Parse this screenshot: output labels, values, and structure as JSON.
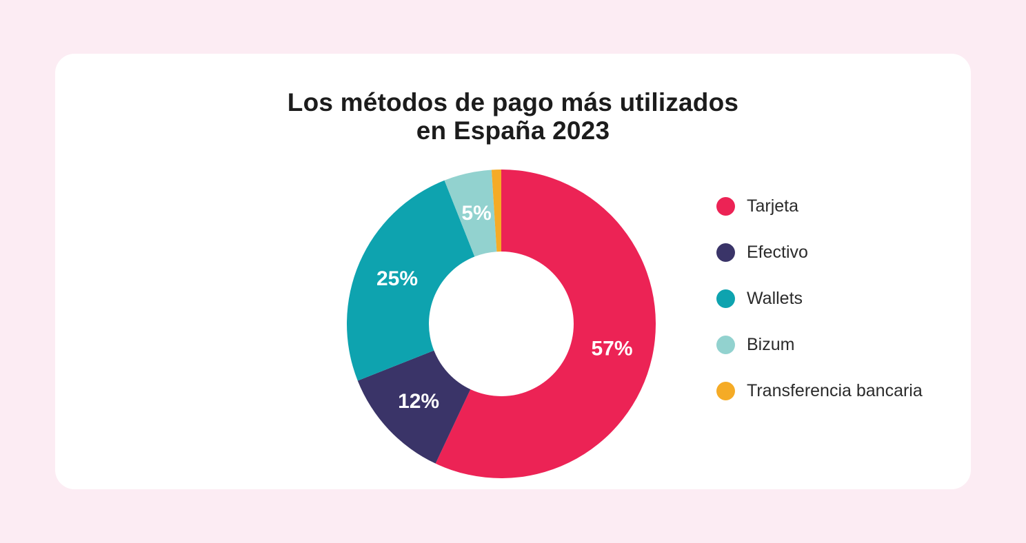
{
  "page": {
    "background_color": "#FCECF3",
    "card_color": "#FFFFFF"
  },
  "title": {
    "line1": "Los métodos de pago más utilizados",
    "line2": "en España 2023",
    "color": "#1C1C1C"
  },
  "chart_data": {
    "type": "pie",
    "variant": "donut",
    "title": "Los métodos de pago más utilizados en España 2023",
    "unit": "%",
    "direction": "clockwise",
    "start_angle_deg": 0,
    "inner_radius_ratio": 0.47,
    "legend_position": "right",
    "data_label_color": "#FFFFFF",
    "categories": [
      "Tarjeta",
      "Efectivo",
      "Wallets",
      "Bizum",
      "Transferencia bancaria"
    ],
    "values": [
      57,
      12,
      25,
      5,
      1
    ],
    "colors": [
      "#EC2355",
      "#3A3468",
      "#0EA3AF",
      "#92D2CF",
      "#F5AB26"
    ],
    "data_labels": [
      "57%",
      "12%",
      "25%",
      "5%",
      ""
    ]
  }
}
